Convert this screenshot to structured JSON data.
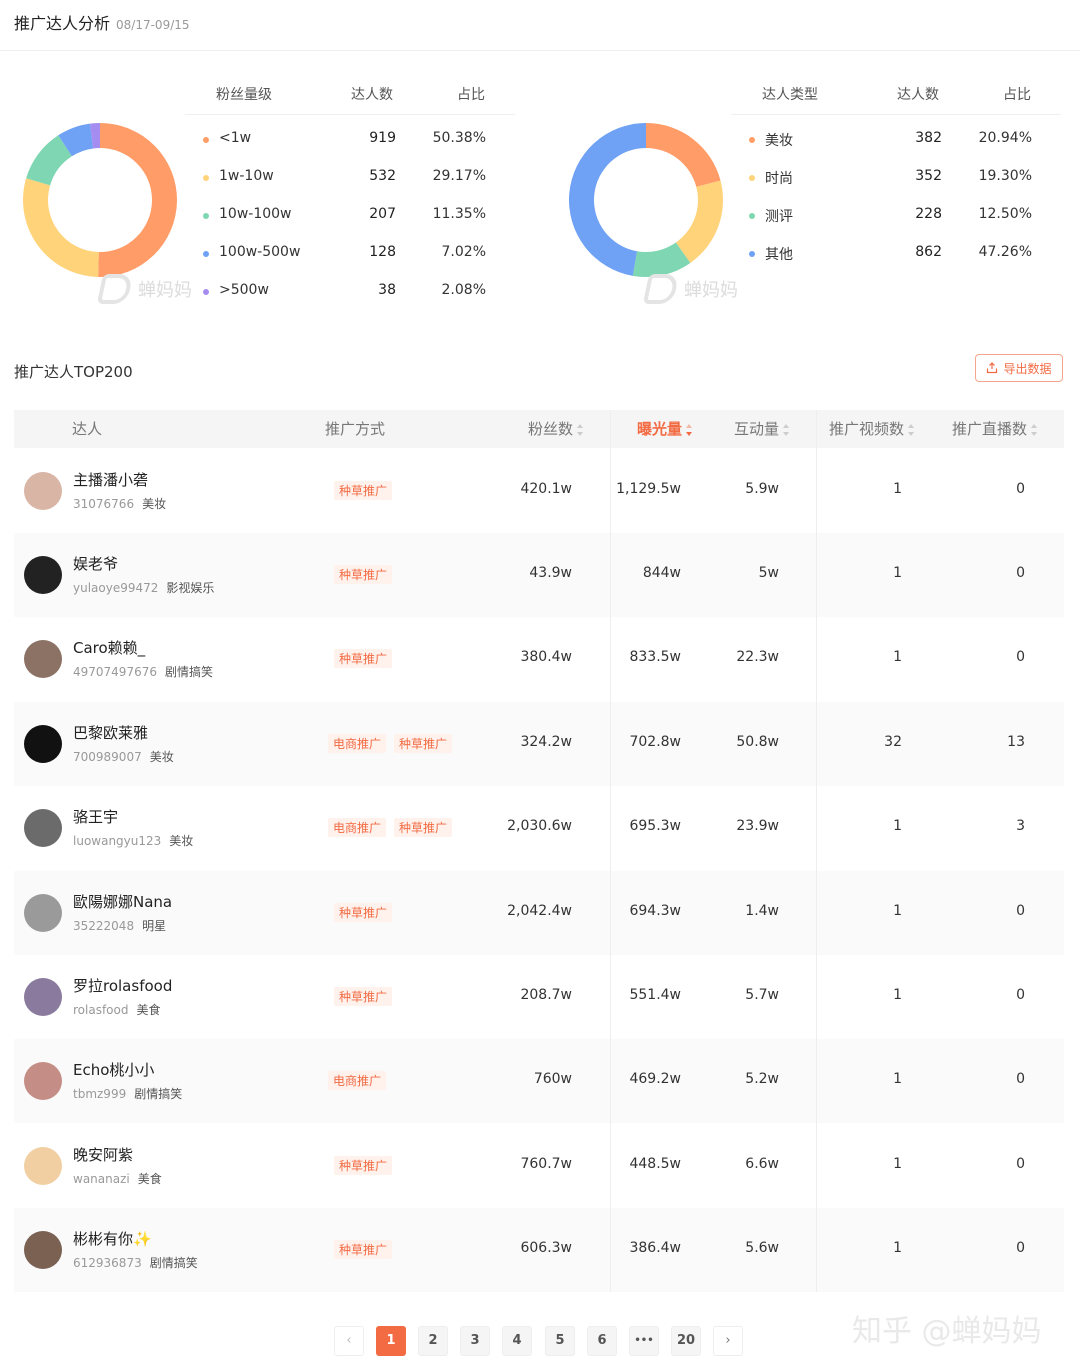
{
  "header": {
    "title": "推广达人分析",
    "date_range": "08/17-09/15"
  },
  "watermark": "蝉妈妈",
  "fans_dist": {
    "headers": [
      "粉丝量级",
      "达人数",
      "占比"
    ],
    "rows": [
      {
        "label": "<1w",
        "count": "919",
        "pct": "50.38%",
        "value": 50.38,
        "color": "#ff9c68"
      },
      {
        "label": "1w-10w",
        "count": "532",
        "pct": "29.17%",
        "value": 29.17,
        "color": "#ffd37a"
      },
      {
        "label": "10w-100w",
        "count": "207",
        "pct": "11.35%",
        "value": 11.35,
        "color": "#7ed6b2"
      },
      {
        "label": "100w-500w",
        "count": "128",
        "pct": "7.02%",
        "value": 7.02,
        "color": "#6fa1f4"
      },
      {
        "label": ">500w",
        "count": "38",
        "pct": "2.08%",
        "value": 2.08,
        "color": "#a58cf0"
      }
    ]
  },
  "type_dist": {
    "headers": [
      "达人类型",
      "达人数",
      "占比"
    ],
    "rows": [
      {
        "label": "美妆",
        "count": "382",
        "pct": "20.94%",
        "value": 20.94,
        "color": "#ff9c68"
      },
      {
        "label": "时尚",
        "count": "352",
        "pct": "19.30%",
        "value": 19.3,
        "color": "#ffd37a"
      },
      {
        "label": "测评",
        "count": "228",
        "pct": "12.50%",
        "value": 12.5,
        "color": "#7ed6b2"
      },
      {
        "label": "其他",
        "count": "862",
        "pct": "47.26%",
        "value": 47.26,
        "color": "#6fa1f4"
      }
    ]
  },
  "top_section": {
    "title": "推广达人TOP200",
    "export_label": "导出数据"
  },
  "table": {
    "columns": {
      "influencer": "达人",
      "method": "推广方式",
      "fans": "粉丝数",
      "exposure": "曝光量",
      "interaction": "互动量",
      "videos": "推广视频数",
      "lives": "推广直播数"
    },
    "rows": [
      {
        "name": "主播潘小砻",
        "id": "31076766",
        "category": "美妆",
        "tags": [
          "种草推广"
        ],
        "fans": "420.1w",
        "exposure": "1,129.5w",
        "interaction": "5.9w",
        "videos": "1",
        "lives": "0",
        "avatar": "#d9b5a5"
      },
      {
        "name": "娱老爷",
        "id": "yulaoye99472",
        "category": "影视娱乐",
        "tags": [
          "种草推广"
        ],
        "fans": "43.9w",
        "exposure": "844w",
        "interaction": "5w",
        "videos": "1",
        "lives": "0",
        "avatar": "#222222"
      },
      {
        "name": "Caro赖赖_",
        "id": "49707497676",
        "category": "剧情搞笑",
        "tags": [
          "种草推广"
        ],
        "fans": "380.4w",
        "exposure": "833.5w",
        "interaction": "22.3w",
        "videos": "1",
        "lives": "0",
        "avatar": "#8c7264"
      },
      {
        "name": "巴黎欧莱雅",
        "id": "700989007",
        "category": "美妆",
        "tags": [
          "电商推广",
          "种草推广"
        ],
        "fans": "324.2w",
        "exposure": "702.8w",
        "interaction": "50.8w",
        "videos": "32",
        "lives": "13",
        "avatar": "#111111"
      },
      {
        "name": "骆王宇",
        "id": "luowangyu123",
        "category": "美妆",
        "tags": [
          "电商推广",
          "种草推广"
        ],
        "fans": "2,030.6w",
        "exposure": "695.3w",
        "interaction": "23.9w",
        "videos": "1",
        "lives": "3",
        "avatar": "#6b6b6b"
      },
      {
        "name": "歐陽娜娜Nana",
        "id": "35222048",
        "category": "明星",
        "tags": [
          "种草推广"
        ],
        "fans": "2,042.4w",
        "exposure": "694.3w",
        "interaction": "1.4w",
        "videos": "1",
        "lives": "0",
        "avatar": "#9a9a9a"
      },
      {
        "name": "罗拉rolasfood",
        "id": "rolasfood",
        "category": "美食",
        "tags": [
          "种草推广"
        ],
        "fans": "208.7w",
        "exposure": "551.4w",
        "interaction": "5.7w",
        "videos": "1",
        "lives": "0",
        "avatar": "#8a7b9e"
      },
      {
        "name": "Echo桃小小",
        "id": "tbmz999",
        "category": "剧情搞笑",
        "tags": [
          "电商推广"
        ],
        "fans": "760w",
        "exposure": "469.2w",
        "interaction": "5.2w",
        "videos": "1",
        "lives": "0",
        "avatar": "#c48d86"
      },
      {
        "name": "晚安阿紫",
        "id": "wananazi",
        "category": "美食",
        "tags": [
          "种草推广"
        ],
        "fans": "760.7w",
        "exposure": "448.5w",
        "interaction": "6.6w",
        "videos": "1",
        "lives": "0",
        "avatar": "#f1cfa2"
      },
      {
        "name": "彬彬有你✨",
        "id": "612936873",
        "category": "剧情搞笑",
        "tags": [
          "种草推广"
        ],
        "fans": "606.3w",
        "exposure": "386.4w",
        "interaction": "5.6w",
        "videos": "1",
        "lives": "0",
        "avatar": "#7a6152"
      }
    ]
  },
  "pagination": {
    "prev": "‹",
    "next": "›",
    "pages": [
      "1",
      "2",
      "3",
      "4",
      "5",
      "6",
      "•••",
      "20"
    ],
    "current": "1"
  },
  "site_watermark": "知乎 @蝉妈妈"
}
